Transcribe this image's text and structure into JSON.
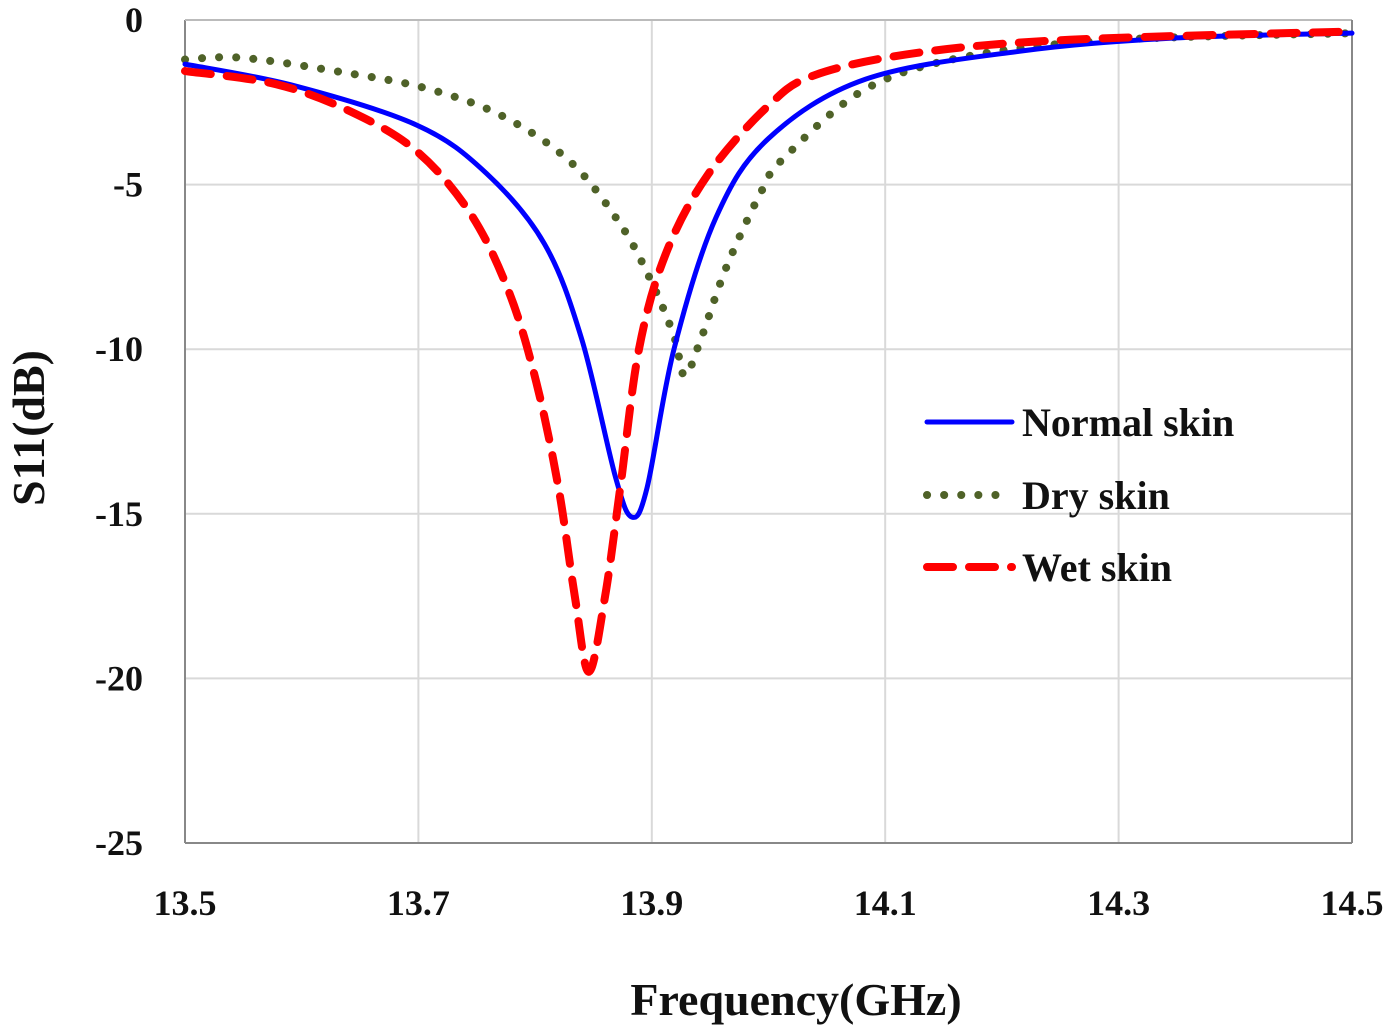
{
  "chart_data": {
    "type": "line",
    "title": "",
    "xlabel": "Frequency(GHz)",
    "ylabel": "S11(dB)",
    "xlim": [
      13.5,
      14.5
    ],
    "ylim": [
      -25,
      0
    ],
    "xticks": [
      "13.5",
      "13.7",
      "13.9",
      "14.1",
      "14.3",
      "14.5"
    ],
    "yticks": [
      "0",
      "-5",
      "-10",
      "-15",
      "-20",
      "-25"
    ],
    "grid": true,
    "legend_position": "right-middle",
    "series": [
      {
        "name": "Normal skin",
        "color": "#0000ff",
        "style": "solid",
        "x": [
          13.5,
          13.594,
          13.699,
          13.758,
          13.808,
          13.84,
          13.869,
          13.883,
          13.896,
          13.919,
          13.955,
          14.0,
          14.083,
          14.215,
          14.346,
          14.5
        ],
        "y": [
          -1.34,
          -2.0,
          -3.2,
          -4.65,
          -6.8,
          -9.7,
          -13.9,
          -15.1,
          -14.2,
          -10.0,
          -6.0,
          -3.6,
          -1.8,
          -0.95,
          -0.55,
          -0.4
        ]
      },
      {
        "name": "Dry skin",
        "color": "#4f6228",
        "style": "dotted",
        "x": [
          13.5,
          13.55,
          13.637,
          13.706,
          13.771,
          13.83,
          13.873,
          13.899,
          13.919,
          13.928,
          13.941,
          13.964,
          13.994,
          14.013,
          14.083,
          14.171,
          14.3,
          14.5
        ],
        "y": [
          -1.2,
          -1.15,
          -1.6,
          -2.07,
          -2.9,
          -4.3,
          -6.2,
          -7.9,
          -9.6,
          -10.8,
          -9.8,
          -7.5,
          -5.2,
          -4.2,
          -2.1,
          -1.1,
          -0.6,
          -0.4
        ]
      },
      {
        "name": "Wet skin",
        "color": "#ff0000",
        "style": "dashed",
        "x": [
          13.5,
          13.578,
          13.643,
          13.699,
          13.745,
          13.778,
          13.801,
          13.82,
          13.834,
          13.846,
          13.86,
          13.873,
          13.889,
          13.912,
          13.948,
          14.0,
          14.04,
          14.127,
          14.258,
          14.5
        ],
        "y": [
          -1.55,
          -1.95,
          -2.8,
          -4.0,
          -5.9,
          -8.3,
          -11.0,
          -14.2,
          -17.5,
          -19.8,
          -17.5,
          -14.2,
          -10.0,
          -7.1,
          -4.7,
          -2.6,
          -1.67,
          -1.0,
          -0.6,
          -0.35
        ]
      }
    ]
  }
}
